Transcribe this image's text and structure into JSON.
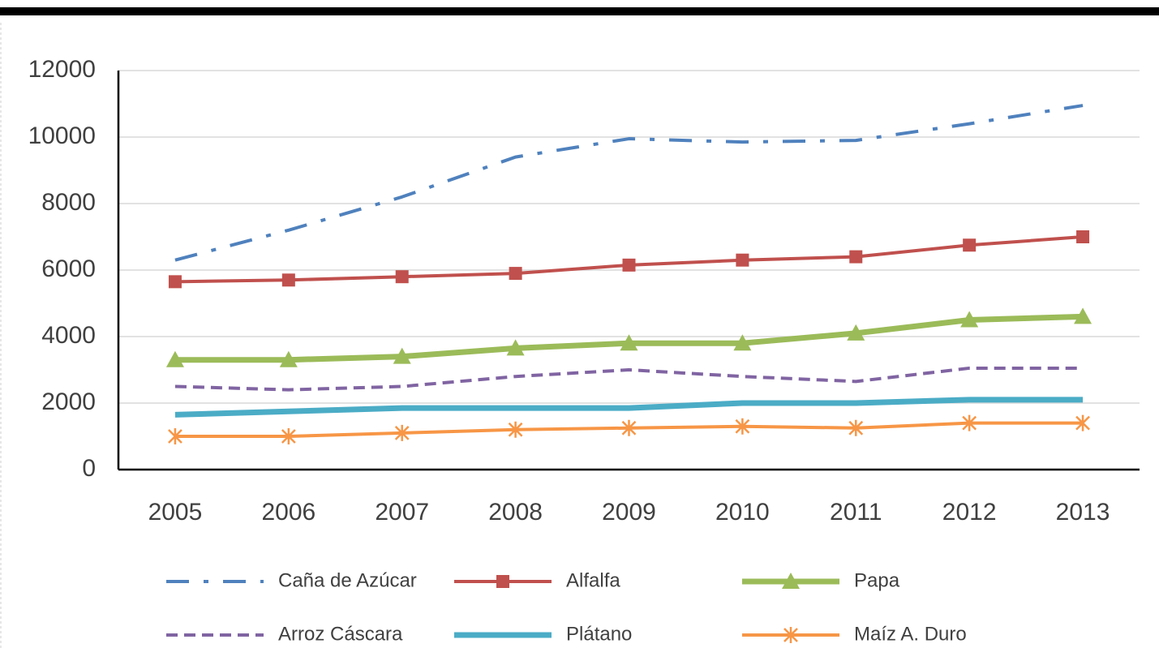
{
  "chart_data": {
    "type": "line",
    "categories": [
      "2005",
      "2006",
      "2007",
      "2008",
      "2009",
      "2010",
      "2011",
      "2012",
      "2013"
    ],
    "series": [
      {
        "name": "Caña de Azúcar",
        "color": "#4f81bd",
        "dash": "dashdot",
        "marker": "none",
        "values": [
          6300,
          7200,
          8200,
          9400,
          9950,
          9850,
          9900,
          10400,
          10950
        ]
      },
      {
        "name": "Alfalfa",
        "color": "#c0504d",
        "dash": "solid",
        "marker": "square",
        "values": [
          5650,
          5700,
          5800,
          5900,
          6150,
          6300,
          6400,
          6750,
          7000
        ]
      },
      {
        "name": "Papa",
        "color": "#9bbb59",
        "dash": "solid",
        "marker": "triangle",
        "values": [
          3300,
          3300,
          3400,
          3650,
          3800,
          3800,
          4100,
          4500,
          4600
        ]
      },
      {
        "name": "Arroz Cáscara",
        "color": "#8064a2",
        "dash": "dash",
        "marker": "none",
        "values": [
          2500,
          2400,
          2500,
          2800,
          3000,
          2800,
          2650,
          3050,
          3050
        ]
      },
      {
        "name": "Plátano",
        "color": "#4bacc6",
        "dash": "solid",
        "marker": "none",
        "values": [
          1650,
          1750,
          1850,
          1850,
          1850,
          2000,
          2000,
          2100,
          2100
        ]
      },
      {
        "name": "Maíz A. Duro",
        "color": "#f79646",
        "dash": "solid",
        "marker": "asterisk",
        "values": [
          1000,
          1000,
          1100,
          1200,
          1250,
          1300,
          1250,
          1400,
          1400
        ]
      }
    ],
    "ylim": [
      0,
      12000
    ],
    "yticks": [
      0,
      2000,
      4000,
      6000,
      8000,
      10000,
      12000
    ],
    "grid": true
  }
}
